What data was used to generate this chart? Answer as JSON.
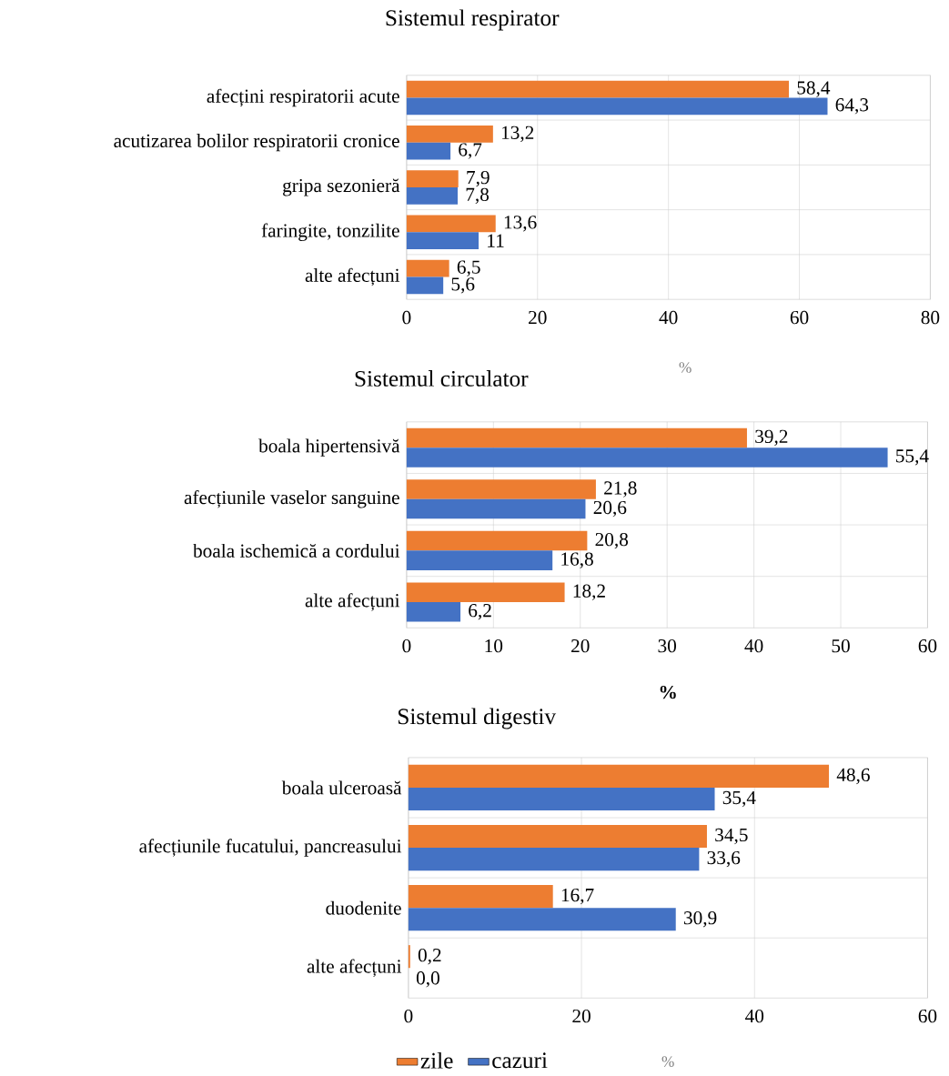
{
  "chart_data": [
    {
      "type": "bar",
      "orientation": "horizontal",
      "title": "Sistemul respirator",
      "xlabel": "%",
      "categories": [
        "afecțini respiratorii acute",
        "acutizarea bolilor respiratorii cronice",
        "gripa sezonieră",
        "faringite, tonzilite",
        "alte afecțuni"
      ],
      "series": [
        {
          "color": "#ed7d31",
          "values": [
            58.4,
            13.2,
            7.9,
            13.6,
            6.5
          ],
          "value_labels": [
            "58,4",
            "13,2",
            "7,9",
            "13,6",
            "6,5"
          ]
        },
        {
          "color": "#4472c4",
          "values": [
            64.3,
            6.7,
            7.8,
            11,
            5.6
          ],
          "value_labels": [
            "64,3",
            "6,7",
            "7,8",
            "11",
            "5,6"
          ]
        }
      ],
      "xlim": [
        0,
        80
      ],
      "xticks": [
        0,
        20,
        40,
        60,
        80
      ],
      "grid": true
    },
    {
      "type": "bar",
      "orientation": "horizontal",
      "title": "Sistemul circulator",
      "xlabel": "%",
      "categories": [
        "boala hipertensivă",
        "afecțiunile vaselor sanguine",
        "boala ischemică a cordului",
        "alte afecțuni"
      ],
      "series": [
        {
          "color": "#ed7d31",
          "values": [
            39.2,
            21.8,
            20.8,
            18.2
          ],
          "value_labels": [
            "39,2",
            "21,8",
            "20,8",
            "18,2"
          ]
        },
        {
          "color": "#4472c4",
          "values": [
            55.4,
            20.6,
            16.8,
            6.2
          ],
          "value_labels": [
            "55,4",
            "20,6",
            "16,8",
            "6,2"
          ]
        }
      ],
      "xlim": [
        0,
        60
      ],
      "xticks": [
        0,
        10,
        20,
        30,
        40,
        50,
        60
      ],
      "grid": true
    },
    {
      "type": "bar",
      "orientation": "horizontal",
      "title": "Sistemul digestiv",
      "xlabel": "%",
      "categories": [
        "boala ulceroasă",
        "afecțiunile fucatului, pancreasului",
        "duodenite",
        "alte afecțuni"
      ],
      "series": [
        {
          "name": "zile",
          "color": "#ed7d31",
          "values": [
            48.6,
            34.5,
            16.7,
            0.2
          ],
          "value_labels": [
            "48,6",
            "34,5",
            "16,7",
            "0,2"
          ]
        },
        {
          "name": "cazuri",
          "color": "#4472c4",
          "values": [
            35.4,
            33.6,
            30.9,
            0.0
          ],
          "value_labels": [
            "35,4",
            "33,6",
            "30,9",
            "0,0"
          ]
        }
      ],
      "xlim": [
        0,
        60
      ],
      "xticks": [
        0,
        20,
        40,
        60
      ],
      "grid": true,
      "legend": "bottom"
    }
  ]
}
